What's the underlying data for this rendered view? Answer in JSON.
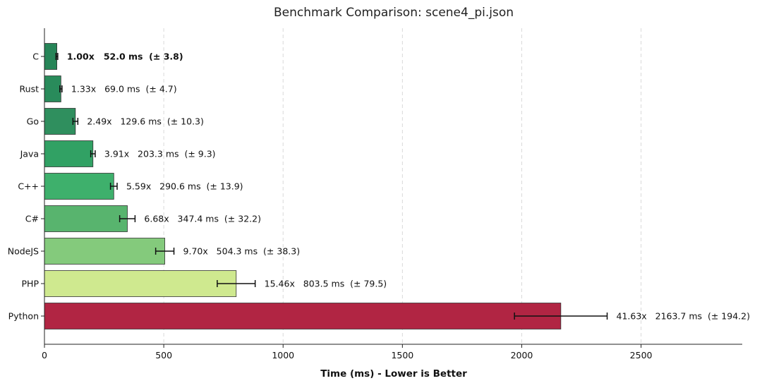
{
  "chart_data": {
    "type": "bar",
    "orientation": "horizontal",
    "title": "Benchmark Comparison: scene4_pi.json",
    "xlabel": "Time (ms) - Lower is Better",
    "ylabel": "",
    "xlim": [
      0,
      2924
    ],
    "xticks": [
      0,
      500,
      1000,
      1500,
      2000,
      2500
    ],
    "grid": "x-axis dashed",
    "legend": "none",
    "baseline_category": "C",
    "categories": [
      "C",
      "Rust",
      "Go",
      "Java",
      "C++",
      "C#",
      "NodeJS",
      "PHP",
      "Python"
    ],
    "values": [
      52.0,
      69.0,
      129.6,
      203.3,
      290.6,
      347.4,
      504.3,
      803.5,
      2163.7
    ],
    "errors": [
      3.8,
      4.7,
      10.3,
      9.3,
      13.9,
      32.2,
      38.3,
      79.5,
      194.2
    ],
    "ratios": [
      "1.00x",
      "1.33x",
      "2.49x",
      "3.91x",
      "5.59x",
      "6.68x",
      "9.70x",
      "15.46x",
      "41.63x"
    ],
    "data_labels": [
      "1.00x   52.0 ms  (± 3.8)",
      "1.33x   69.0 ms  (± 4.7)",
      "2.49x   129.6 ms  (± 10.3)",
      "3.91x   203.3 ms  (± 9.3)",
      "5.59x   290.6 ms  (± 13.9)",
      "6.68x   347.4 ms  (± 32.2)",
      "9.70x   504.3 ms  (± 38.3)",
      "15.46x   803.5 ms  (± 79.5)",
      "41.63x   2163.7 ms  (± 194.2)"
    ],
    "colors": [
      "#278558",
      "#298b5b",
      "#2f8f5e",
      "#31a164",
      "#3eb06c",
      "#58b46e",
      "#84ca7c",
      "#cfe98f",
      "#b12543"
    ]
  }
}
